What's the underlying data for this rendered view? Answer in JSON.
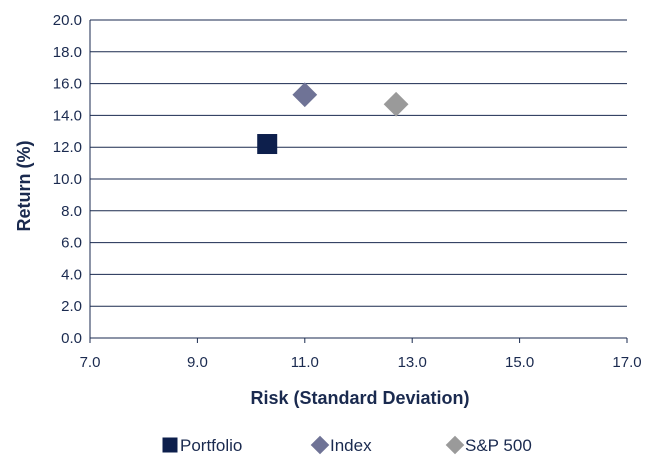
{
  "chart_data": {
    "type": "scatter",
    "title": "",
    "xlabel": "Risk (Standard Deviation)",
    "ylabel": "Return (%)",
    "xlim": [
      7.0,
      17.0
    ],
    "ylim": [
      0.0,
      20.0
    ],
    "x_ticks": [
      "7.0",
      "9.0",
      "11.0",
      "13.0",
      "15.0",
      "17.0"
    ],
    "y_ticks": [
      "0.0",
      "2.0",
      "4.0",
      "6.0",
      "8.0",
      "10.0",
      "12.0",
      "14.0",
      "16.0",
      "18.0",
      "20.0"
    ],
    "grid": "horizontal",
    "legend_position": "bottom",
    "series": [
      {
        "name": "Portfolio",
        "x": 10.3,
        "y": 12.2,
        "marker": "square",
        "color": "#0d1f4c"
      },
      {
        "name": "Index",
        "x": 11.0,
        "y": 15.3,
        "marker": "diamond",
        "color": "#6f7396"
      },
      {
        "name": "S&P 500",
        "x": 12.7,
        "y": 14.7,
        "marker": "diamond",
        "color": "#9a9a9a"
      }
    ]
  }
}
